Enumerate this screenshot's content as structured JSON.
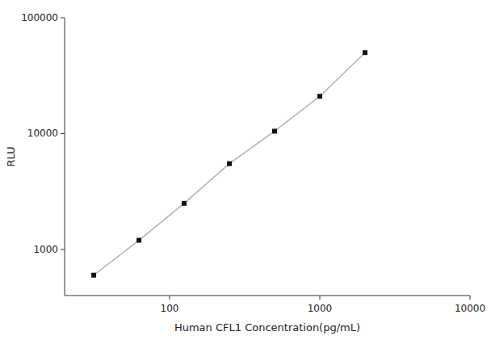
{
  "chart_data": {
    "type": "line",
    "xlabel": "Human CFL1 Concentration(pg/mL)",
    "ylabel": "RLU",
    "x": [
      31.25,
      62.5,
      125,
      250,
      500,
      1000,
      2000
    ],
    "values": [
      600,
      1200,
      2500,
      5500,
      10500,
      21000,
      50000
    ],
    "color": "#b0b0b0",
    "colors": [
      "#111111",
      "#111111",
      "#111111",
      "#111111",
      "#111111",
      "#111111",
      "#111111"
    ],
    "marker": "square",
    "line_style": "solid",
    "log": true,
    "grid": false,
    "xlim": [
      20,
      10000
    ],
    "ylim": [
      400,
      100000
    ],
    "xticks": [
      100,
      1000,
      10000
    ],
    "yticks": [
      1000,
      10000,
      100000
    ]
  }
}
